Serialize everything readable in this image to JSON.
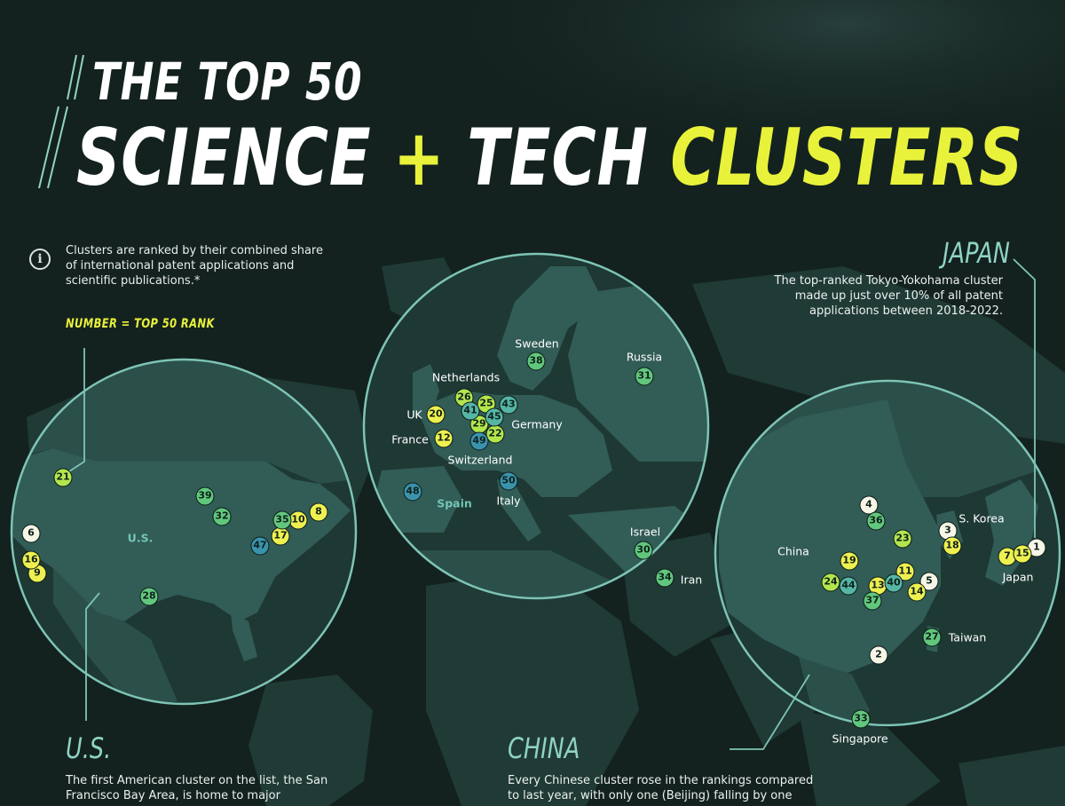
{
  "title": {
    "line1": "THE TOP 50",
    "line2_science": "SCIENCE",
    "line2_plus": "+",
    "line2_tech": "TECH",
    "line2_clusters": "CLUSTERS"
  },
  "info": {
    "icon": "info-icon",
    "text": "Clusters are ranked by their combined share of international patent applications and scientific publications.*"
  },
  "legend": {
    "rank_note": "NUMBER = TOP 50 RANK"
  },
  "japan": {
    "title": "JAPAN",
    "description": "The top-ranked Tokyo-Yokohama cluster made up just over 10% of all patent applications between 2018-2022."
  },
  "us": {
    "title": "U.S.",
    "description": "The first American cluster on the list, the San Francisco Bay Area, is home to major"
  },
  "china": {
    "title": "CHINA",
    "description": "Every Chinese cluster rose in the rankings compared to last year, with only one (Beijing) falling by one"
  },
  "colors": {
    "background": "#13221f",
    "land": "#2a4a45",
    "lens_land": "#335d57",
    "accent_yellow": "#e9f23a",
    "accent_teal": "#8fd3c4"
  },
  "region_labels": [
    {
      "id": "us",
      "text": "U.S.",
      "style": "teal"
    },
    {
      "id": "sweden",
      "text": "Sweden"
    },
    {
      "id": "russia",
      "text": "Russia"
    },
    {
      "id": "netherlands",
      "text": "Netherlands"
    },
    {
      "id": "uk",
      "text": "UK"
    },
    {
      "id": "france",
      "text": "France"
    },
    {
      "id": "germany",
      "text": "Germany"
    },
    {
      "id": "switzerland",
      "text": "Switzerland"
    },
    {
      "id": "spain",
      "text": "Spain",
      "style": "teal"
    },
    {
      "id": "italy",
      "text": "Italy"
    },
    {
      "id": "israel",
      "text": "Israel"
    },
    {
      "id": "iran",
      "text": "Iran"
    },
    {
      "id": "china",
      "text": "China"
    },
    {
      "id": "skorea",
      "text": "S. Korea"
    },
    {
      "id": "japan",
      "text": "Japan"
    },
    {
      "id": "taiwan",
      "text": "Taiwan"
    },
    {
      "id": "singapore",
      "text": "Singapore"
    }
  ],
  "markers": [
    {
      "rank": "1",
      "tier": "white"
    },
    {
      "rank": "2",
      "tier": "white"
    },
    {
      "rank": "3",
      "tier": "white"
    },
    {
      "rank": "4",
      "tier": "white"
    },
    {
      "rank": "5",
      "tier": "white"
    },
    {
      "rank": "6",
      "tier": "white"
    },
    {
      "rank": "7",
      "tier": "yellow"
    },
    {
      "rank": "8",
      "tier": "yellow"
    },
    {
      "rank": "9",
      "tier": "yellow"
    },
    {
      "rank": "10",
      "tier": "yellow"
    },
    {
      "rank": "11",
      "tier": "yellow"
    },
    {
      "rank": "12",
      "tier": "yellow"
    },
    {
      "rank": "13",
      "tier": "yellow"
    },
    {
      "rank": "14",
      "tier": "yellow"
    },
    {
      "rank": "15",
      "tier": "yellow"
    },
    {
      "rank": "16",
      "tier": "yellow"
    },
    {
      "rank": "17",
      "tier": "yellow"
    },
    {
      "rank": "18",
      "tier": "yellow"
    },
    {
      "rank": "19",
      "tier": "yellow"
    },
    {
      "rank": "20",
      "tier": "yellow"
    },
    {
      "rank": "21",
      "tier": "lime"
    },
    {
      "rank": "22",
      "tier": "lime"
    },
    {
      "rank": "23",
      "tier": "lime"
    },
    {
      "rank": "24",
      "tier": "lime"
    },
    {
      "rank": "25",
      "tier": "lime"
    },
    {
      "rank": "26",
      "tier": "lime"
    },
    {
      "rank": "27",
      "tier": "green"
    },
    {
      "rank": "28",
      "tier": "green"
    },
    {
      "rank": "29",
      "tier": "lime"
    },
    {
      "rank": "30",
      "tier": "green"
    },
    {
      "rank": "31",
      "tier": "green"
    },
    {
      "rank": "32",
      "tier": "green"
    },
    {
      "rank": "33",
      "tier": "green"
    },
    {
      "rank": "34",
      "tier": "green"
    },
    {
      "rank": "35",
      "tier": "green"
    },
    {
      "rank": "36",
      "tier": "green"
    },
    {
      "rank": "37",
      "tier": "green"
    },
    {
      "rank": "38",
      "tier": "green"
    },
    {
      "rank": "39",
      "tier": "green"
    },
    {
      "rank": "40",
      "tier": "teal"
    },
    {
      "rank": "41",
      "tier": "teal"
    },
    {
      "rank": "43",
      "tier": "teal"
    },
    {
      "rank": "44",
      "tier": "teal"
    },
    {
      "rank": "45",
      "tier": "teal"
    },
    {
      "rank": "47",
      "tier": "blue"
    },
    {
      "rank": "48",
      "tier": "blue"
    },
    {
      "rank": "49",
      "tier": "blue"
    },
    {
      "rank": "50",
      "tier": "blue"
    }
  ]
}
